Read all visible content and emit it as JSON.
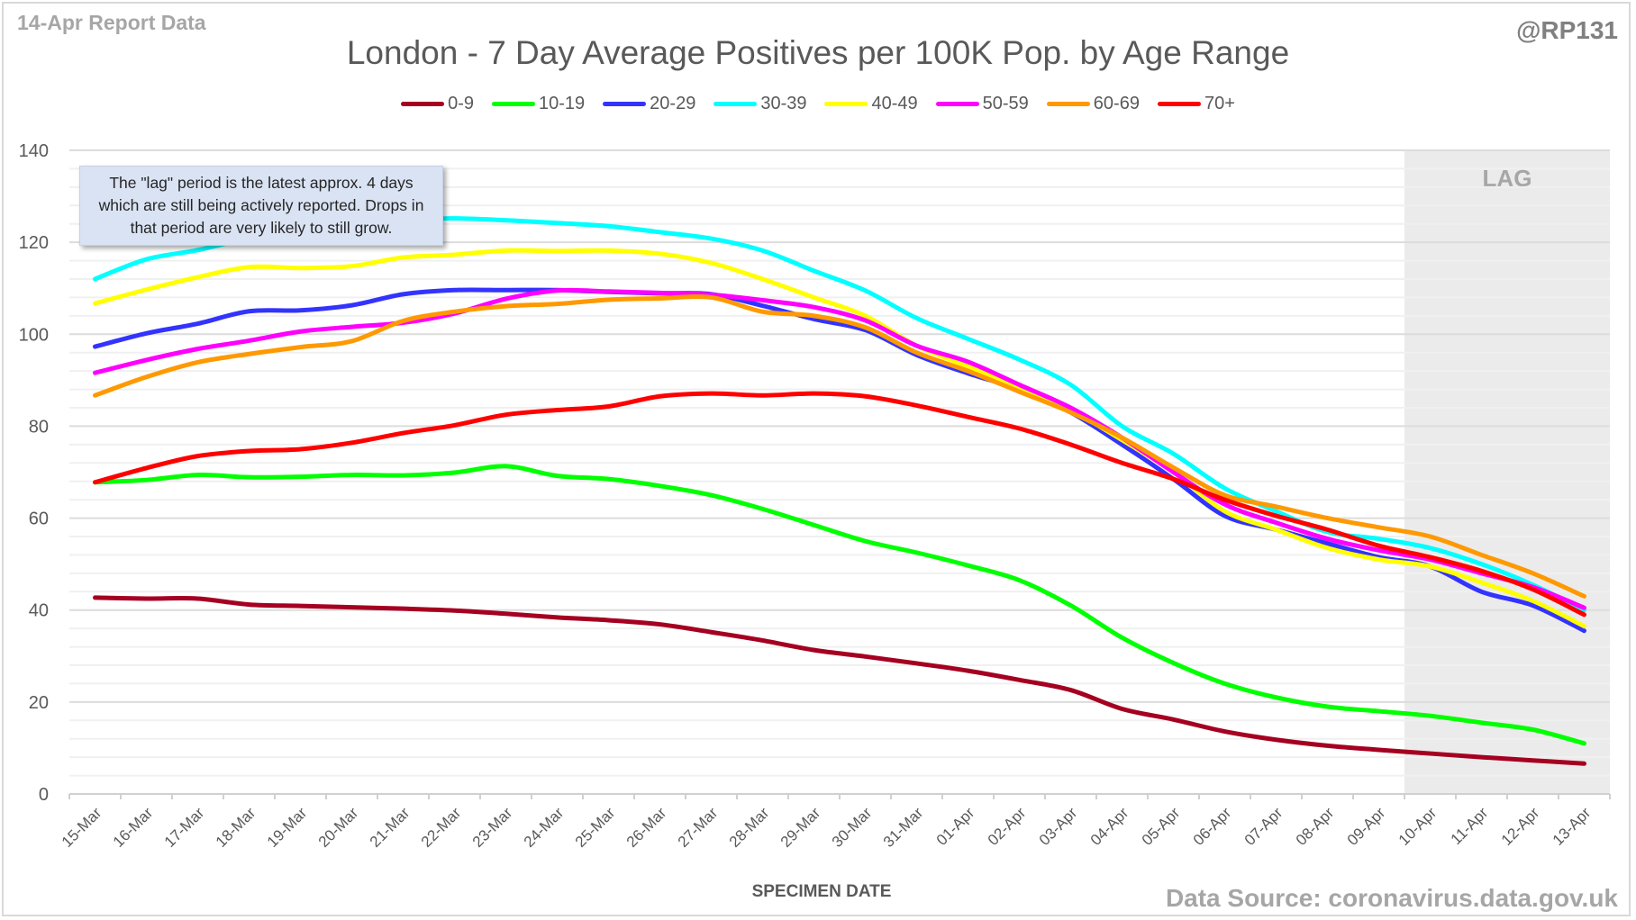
{
  "header": {
    "report_label": "14-Apr Report Data",
    "handle": "@RP131",
    "source": "Data Source: coronavirus.data.gov.uk"
  },
  "annotation": "The \"lag\" period is the latest approx. 4 days which are still being actively reported.  Drops in that period are very likely to still grow.",
  "chart_data": {
    "type": "line",
    "title": "London - 7 Day Average Positives per 100K Pop. by Age Range",
    "xlabel": "SPECIMEN DATE",
    "ylabel": "",
    "ylim": [
      0,
      140
    ],
    "yticks": [
      0,
      20,
      40,
      60,
      80,
      100,
      120,
      140
    ],
    "grid": true,
    "legend_position": "top",
    "lag_label": "LAG",
    "lag_start": "10-Apr",
    "lag_end": "13-Apr",
    "lag_color": "#ebebeb",
    "categories": [
      "15-Mar",
      "16-Mar",
      "17-Mar",
      "18-Mar",
      "19-Mar",
      "20-Mar",
      "21-Mar",
      "22-Mar",
      "23-Mar",
      "24-Mar",
      "25-Mar",
      "26-Mar",
      "27-Mar",
      "28-Mar",
      "29-Mar",
      "30-Mar",
      "31-Mar",
      "01-Apr",
      "02-Apr",
      "03-Apr",
      "04-Apr",
      "05-Apr",
      "06-Apr",
      "07-Apr",
      "08-Apr",
      "09-Apr",
      "10-Apr",
      "11-Apr",
      "12-Apr",
      "13-Apr"
    ],
    "series": [
      {
        "name": "0-9",
        "color": "#a50021",
        "values": [
          42.7,
          42.5,
          42.5,
          41.2,
          40.9,
          40.6,
          40.3,
          39.9,
          39.2,
          38.4,
          37.8,
          36.9,
          35.2,
          33.4,
          31.3,
          29.9,
          28.4,
          26.8,
          24.8,
          22.6,
          18.5,
          16.2,
          13.6,
          11.8,
          10.5,
          9.6,
          8.8,
          8.0,
          7.3,
          6.6
        ]
      },
      {
        "name": "10-19",
        "color": "#00ff00",
        "values": [
          67.8,
          68.3,
          69.4,
          68.9,
          69.0,
          69.4,
          69.3,
          69.9,
          71.3,
          69.2,
          68.5,
          67.0,
          65.0,
          62.0,
          58.5,
          55.0,
          52.5,
          49.7,
          46.5,
          41.0,
          34.0,
          28.5,
          24.0,
          21.0,
          19.0,
          18.0,
          17.0,
          15.5,
          14.0,
          11.0
        ]
      },
      {
        "name": "20-29",
        "color": "#3333ff",
        "values": [
          97.3,
          100.2,
          102.3,
          105.0,
          105.2,
          106.3,
          108.7,
          109.6,
          109.6,
          109.6,
          109.2,
          108.9,
          108.7,
          106.2,
          103.3,
          100.9,
          95.5,
          91.5,
          88.0,
          83.0,
          76.0,
          68.5,
          60.5,
          57.5,
          54.5,
          51.5,
          49.5,
          44.0,
          41.0,
          35.5
        ]
      },
      {
        "name": "30-39",
        "color": "#00ffff",
        "values": [
          112.0,
          116.3,
          118.3,
          121.0,
          123.8,
          124.9,
          125.0,
          125.2,
          124.8,
          124.2,
          123.5,
          122.2,
          120.8,
          118.2,
          113.8,
          109.5,
          103.5,
          99.0,
          94.5,
          89.0,
          80.0,
          74.0,
          66.5,
          61.5,
          57.0,
          55.5,
          53.5,
          50.0,
          45.5,
          40.0
        ]
      },
      {
        "name": "40-49",
        "color": "#ffff00",
        "values": [
          106.7,
          109.7,
          112.4,
          114.6,
          114.4,
          114.8,
          116.7,
          117.3,
          118.2,
          118.1,
          118.2,
          117.5,
          115.5,
          112.0,
          108.0,
          104.0,
          97.5,
          93.0,
          88.5,
          83.5,
          77.0,
          70.0,
          61.5,
          57.5,
          53.5,
          51.0,
          49.5,
          46.0,
          42.0,
          36.5
        ]
      },
      {
        "name": "50-59",
        "color": "#ff00ff",
        "values": [
          91.6,
          94.4,
          96.8,
          98.6,
          100.6,
          101.6,
          102.5,
          104.5,
          107.7,
          109.5,
          109.3,
          109.0,
          108.6,
          107.4,
          105.9,
          103.0,
          97.5,
          94.0,
          89.0,
          84.0,
          77.5,
          70.0,
          63.0,
          59.0,
          55.5,
          53.0,
          51.0,
          48.0,
          45.0,
          40.5
        ]
      },
      {
        "name": "60-69",
        "color": "#ff9900",
        "values": [
          86.7,
          90.7,
          93.9,
          95.7,
          97.2,
          98.5,
          102.9,
          104.9,
          106.1,
          106.6,
          107.5,
          107.8,
          108.0,
          104.9,
          104.0,
          101.5,
          96.0,
          92.0,
          87.5,
          83.0,
          77.5,
          71.0,
          65.0,
          62.5,
          60.0,
          58.0,
          56.0,
          52.0,
          48.0,
          43.0
        ]
      },
      {
        "name": "70+",
        "color": "#ff0000",
        "values": [
          67.8,
          70.9,
          73.5,
          74.6,
          75.0,
          76.4,
          78.5,
          80.2,
          82.5,
          83.5,
          84.3,
          86.5,
          87.1,
          86.7,
          87.1,
          86.5,
          84.5,
          82.0,
          79.5,
          76.0,
          72.0,
          68.5,
          64.0,
          60.5,
          57.5,
          54.0,
          51.5,
          48.5,
          44.5,
          39.0
        ]
      }
    ]
  }
}
